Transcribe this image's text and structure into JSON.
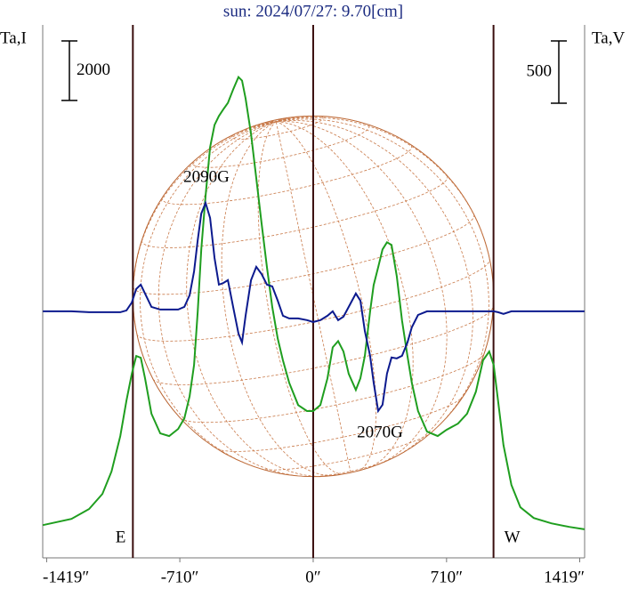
{
  "chart_data": {
    "type": "line",
    "title": "sun: 2024/07/27: 9.70[cm]",
    "y_label": "Ta,I",
    "y2_label": "Ta,V",
    "xlim": [
      -1440,
      1445
    ],
    "xticks": [
      {
        "value": -1419,
        "label": "-1419″"
      },
      {
        "value": -710,
        "label": "-710″"
      },
      {
        "value": 0,
        "label": "0″"
      },
      {
        "value": 710,
        "label": "710″"
      },
      {
        "value": 1419,
        "label": "1419″"
      }
    ],
    "ylim": [
      0,
      17900
    ],
    "y2lim": [
      -1980,
      2300
    ],
    "i_scale_bar": 2000,
    "v_scale_bar": 500,
    "markers": [
      {
        "value": -960,
        "label": "E"
      },
      {
        "value": 0
      },
      {
        "value": 960,
        "label": "W"
      }
    ],
    "annotations": [
      "2090G",
      "2070G"
    ],
    "x": [
      -1439,
      -1287,
      -1193,
      -1122,
      -1074,
      -1027,
      -994,
      -966,
      -942,
      -918,
      -895,
      -861,
      -814,
      -767,
      -719,
      -686,
      -658,
      -634,
      -615,
      -596,
      -573,
      -549,
      -525,
      -502,
      -478,
      -454,
      -426,
      -398,
      -379,
      -360,
      -331,
      -303,
      -275,
      -246,
      -218,
      -189,
      -161,
      -128,
      -80,
      -33,
      0,
      38,
      76,
      104,
      133,
      161,
      189,
      227,
      251,
      275,
      303,
      322,
      346,
      369,
      393,
      417,
      445,
      473,
      502,
      525,
      558,
      606,
      663,
      710,
      771,
      819,
      866,
      904,
      937,
      961,
      984,
      1013,
      1055,
      1103,
      1174,
      1268,
      1363,
      1444
    ],
    "series": [
      {
        "name": "I",
        "color": "#1f9e1f",
        "values": [
          1100,
          1310,
          1640,
          2150,
          2900,
          4090,
          5280,
          6180,
          6780,
          6720,
          6030,
          4840,
          4180,
          4090,
          4330,
          4690,
          5430,
          6480,
          8270,
          10360,
          12150,
          13790,
          14540,
          14840,
          15070,
          15280,
          15730,
          16150,
          16030,
          15430,
          14240,
          12750,
          11250,
          9760,
          8420,
          7370,
          6630,
          5880,
          5130,
          4930,
          4930,
          5130,
          6030,
          7070,
          7280,
          6930,
          6180,
          5640,
          6030,
          6780,
          8270,
          9160,
          9760,
          10360,
          10600,
          10510,
          9460,
          7970,
          6780,
          5880,
          4930,
          4240,
          4090,
          4300,
          4510,
          4840,
          5580,
          6630,
          6930,
          6480,
          5280,
          3790,
          2450,
          1700,
          1340,
          1160,
          1040,
          960
        ]
      },
      {
        "name": "V",
        "color": "#0c1a8e",
        "axis": "y2",
        "values": [
          0,
          0,
          -7,
          -7,
          -7,
          -7,
          7,
          71,
          179,
          214,
          143,
          36,
          14,
          14,
          14,
          36,
          129,
          321,
          571,
          785,
          871,
          750,
          428,
          214,
          228,
          250,
          36,
          -179,
          -250,
          -36,
          250,
          357,
          300,
          214,
          200,
          86,
          -36,
          -57,
          -57,
          -71,
          -86,
          -71,
          -36,
          0,
          -71,
          -43,
          36,
          143,
          86,
          -157,
          -357,
          -571,
          -800,
          -750,
          -500,
          -371,
          -378,
          -357,
          -250,
          -129,
          -29,
          0,
          0,
          0,
          0,
          0,
          0,
          0,
          0,
          0,
          -7,
          -21,
          0,
          0,
          0,
          0,
          0,
          0
        ]
      }
    ]
  }
}
